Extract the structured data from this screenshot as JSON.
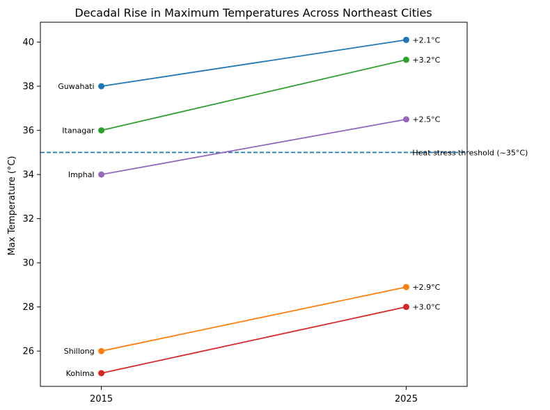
{
  "chart_data": {
    "type": "line",
    "title": "Decadal Rise in Maximum Temperatures Across Northeast Cities",
    "xlabel": "",
    "ylabel": "Max Temperature (°C)",
    "x": [
      2015,
      2025
    ],
    "xticks": [
      "2015",
      "2025"
    ],
    "xlim": [
      2013,
      2027
    ],
    "ylim": [
      24.4,
      40.9
    ],
    "yticks": [
      26,
      28,
      30,
      32,
      34,
      36,
      38,
      40
    ],
    "grid": false,
    "series": [
      {
        "name": "Guwahati",
        "values": [
          38.0,
          40.1
        ],
        "color": "#1f77b4",
        "change_label": "+2.1°C"
      },
      {
        "name": "Shillong",
        "values": [
          26.0,
          28.9
        ],
        "color": "#ff7f0e",
        "change_label": "+2.9°C"
      },
      {
        "name": "Itanagar",
        "values": [
          36.0,
          39.2
        ],
        "color": "#2ca02c",
        "change_label": "+3.2°C"
      },
      {
        "name": "Kohima",
        "values": [
          25.0,
          28.0
        ],
        "color": "#d62728",
        "change_label": "+3.0°C"
      },
      {
        "name": "Imphal",
        "values": [
          34.0,
          36.5
        ],
        "color": "#9467bd",
        "change_label": "+2.5°C"
      }
    ],
    "threshold": {
      "value": 35,
      "label": "Heat stress threshold (~35°C)",
      "color": "#1f77b4",
      "style": "dashed"
    }
  }
}
